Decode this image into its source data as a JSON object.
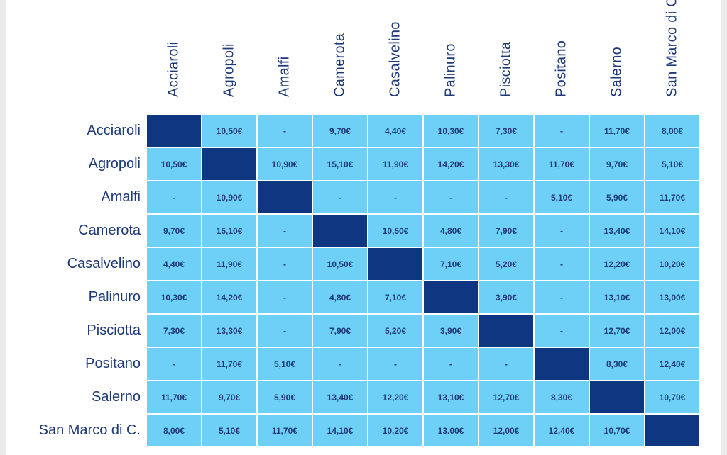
{
  "colors": {
    "cell": "#6fd0f7",
    "diagonal": "#0f3680",
    "text": "#1e3a78"
  },
  "columns": [
    "Acciaroli",
    "Agropoli",
    "Amalfi",
    "Camerota",
    "Casalvelino",
    "Palinuro",
    "Pisciotta",
    "Positano",
    "Salerno",
    "San Marco di C."
  ],
  "rows": [
    {
      "name": "Acciaroli",
      "values": [
        "",
        "10,50€",
        "-",
        "9,70€",
        "4,40€",
        "10,30€",
        "7,30€",
        "-",
        "11,70€",
        "8,00€"
      ]
    },
    {
      "name": "Agropoli",
      "values": [
        "10,50€",
        "",
        "10,90€",
        "15,10€",
        "11,90€",
        "14,20€",
        "13,30€",
        "11,70€",
        "9,70€",
        "5,10€"
      ]
    },
    {
      "name": "Amalfi",
      "values": [
        "-",
        "10,90€",
        "",
        "-",
        "-",
        "-",
        "-",
        "5,10€",
        "5,90€",
        "11,70€"
      ]
    },
    {
      "name": "Camerota",
      "values": [
        "9,70€",
        "15,10€",
        "-",
        "",
        "10,50€",
        "4,80€",
        "7,90€",
        "-",
        "13,40€",
        "14,10€"
      ]
    },
    {
      "name": "Casalvelino",
      "values": [
        "4,40€",
        "11,90€",
        "-",
        "10,50€",
        "",
        "7,10€",
        "5,20€",
        "-",
        "12,20€",
        "10,20€"
      ]
    },
    {
      "name": "Palinuro",
      "values": [
        "10,30€",
        "14,20€",
        "-",
        "4,80€",
        "7,10€",
        "",
        "3,90€",
        "-",
        "13,10€",
        "13,00€"
      ]
    },
    {
      "name": "Pisciotta",
      "values": [
        "7,30€",
        "13,30€",
        "-",
        "7,90€",
        "5,20€",
        "3,90€",
        "",
        "-",
        "12,70€",
        "12,00€"
      ]
    },
    {
      "name": "Positano",
      "values": [
        "-",
        "11,70€",
        "5,10€",
        "-",
        "-",
        "-",
        "-",
        "",
        "8,30€",
        "12,40€"
      ]
    },
    {
      "name": "Salerno",
      "values": [
        "11,70€",
        "9,70€",
        "5,90€",
        "13,40€",
        "12,20€",
        "13,10€",
        "12,70€",
        "8,30€",
        "",
        "10,70€"
      ]
    },
    {
      "name": "San Marco di C.",
      "values": [
        "8,00€",
        "5,10€",
        "11,70€",
        "14,10€",
        "10,20€",
        "13.00€",
        "12,00€",
        "12,40€",
        "10,70€",
        ""
      ]
    }
  ]
}
